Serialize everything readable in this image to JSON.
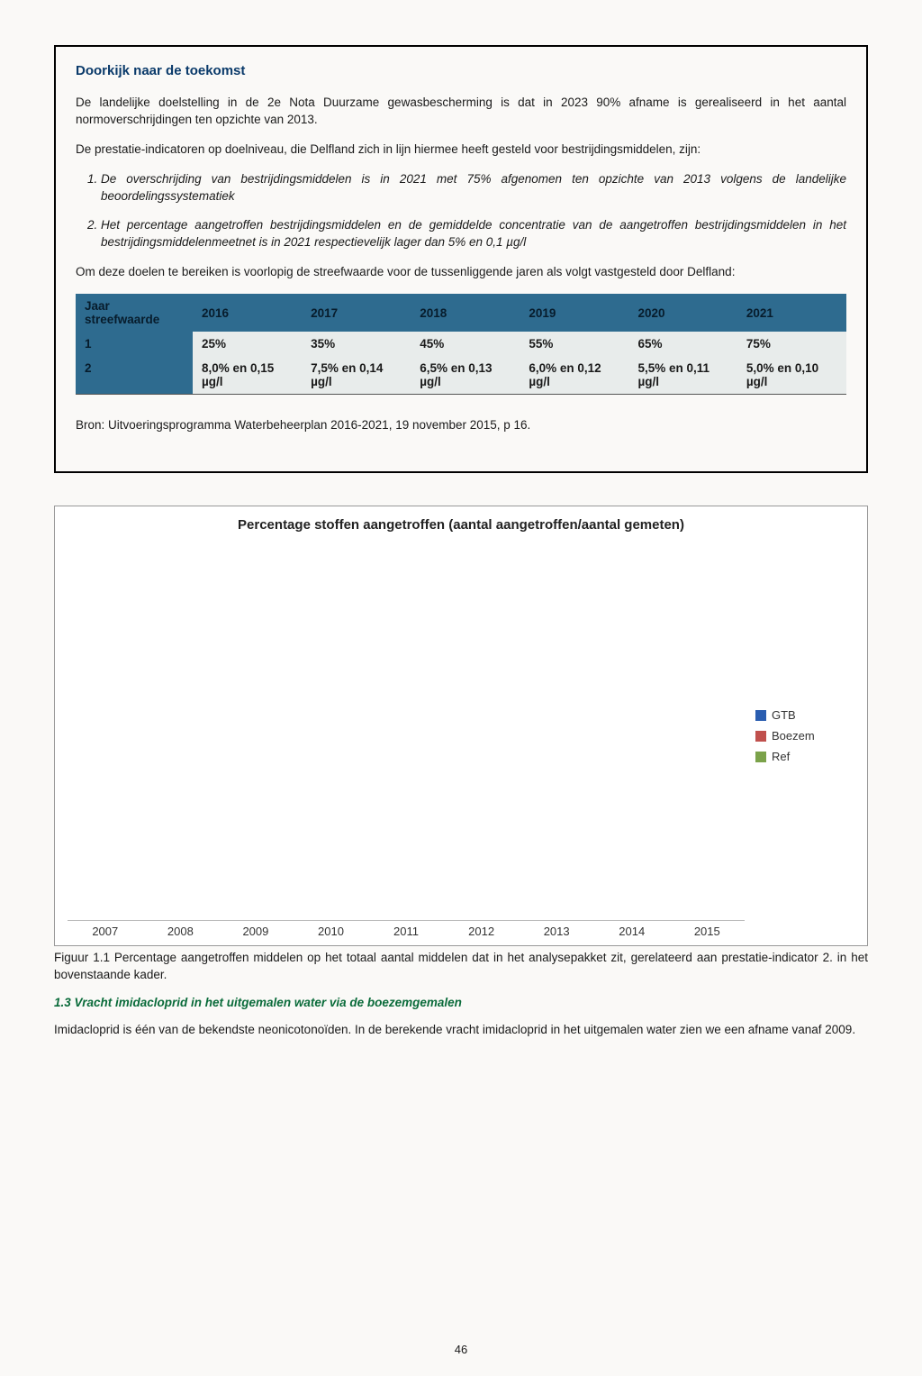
{
  "box": {
    "title": "Doorkijk naar de toekomst",
    "p1": "De landelijke doelstelling in de 2e Nota Duurzame gewasbescherming is dat in 2023 90% afname is gerealiseerd in het aantal normoverschrijdingen ten opzichte van 2013.",
    "p2": "De prestatie-indicatoren op doelniveau, die Delfland zich in lijn hiermee heeft gesteld voor bestrijdingsmiddelen, zijn:",
    "li1": "De overschrijding van bestrijdingsmiddelen is in 2021 met 75% afgenomen ten opzichte van 2013 volgens de landelijke beoordelingssystematiek",
    "li2": "Het percentage aangetroffen bestrijdingsmiddelen en de gemiddelde concentratie van de aangetroffen bestrijdingsmiddelen in het bestrijdingsmiddelenmeetnet is in 2021 respectievelijk lager dan 5% en 0,1 µg/l",
    "p3": "Om deze doelen te bereiken is voorlopig de streefwaarde voor de tussenliggende jaren als volgt vastgesteld door Delfland:",
    "source": "Bron: Uitvoeringsprogramma Waterbeheerplan 2016-2021, 19 november 2015, p 16."
  },
  "table": {
    "headers": [
      "Jaar streefwaarde",
      "2016",
      "2017",
      "2018",
      "2019",
      "2020",
      "2021"
    ],
    "rows": [
      {
        "label": "1",
        "cells": [
          "25%",
          "35%",
          "45%",
          "55%",
          "65%",
          "75%"
        ]
      },
      {
        "label": "2",
        "cells": [
          "8,0% en 0,15 µg/l",
          "7,5% en 0,14 µg/l",
          "6,5% en 0,13 µg/l",
          "6,0% en 0,12 µg/l",
          "5,5% en 0,11 µg/l",
          "5,0% en 0,10 µg/l"
        ]
      }
    ]
  },
  "chart": {
    "title": "Percentage stoffen aangetroffen (aantal aangetroffen/aantal gemeten)",
    "x_labels": [
      "2007",
      "2008",
      "2009",
      "2010",
      "2011",
      "2012",
      "2013",
      "2014",
      "2015"
    ],
    "legend": [
      {
        "label": "GTB",
        "color": "#2a5db0"
      },
      {
        "label": "Boezem",
        "color": "#c0504d"
      },
      {
        "label": "Ref",
        "color": "#7ba24a"
      }
    ],
    "background": "#ffffff",
    "axis_color": "#bbbbbb",
    "font_size": 13
  },
  "caption": "Figuur 1.1 Percentage aangetroffen middelen op het totaal aantal middelen dat in het analysepakket zit, gerelateerd aan prestatie-indicator 2. in het bovenstaande kader.",
  "section_heading": "1.3 Vracht imidacloprid in het uitgemalen water via de boezemgemalen",
  "section_body": "Imidacloprid is één van de bekendste neonicotonoïden. In de berekende vracht imidacloprid in het uitgemalen water zien we een afname vanaf 2009.",
  "page_number": "46"
}
